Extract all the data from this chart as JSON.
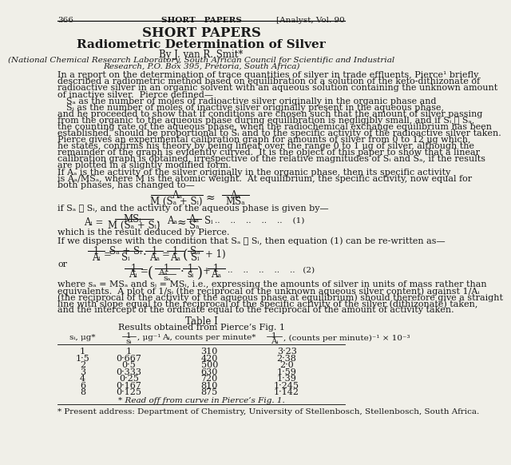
{
  "page_num": "366",
  "header_center": "SHORT   PAPERS",
  "header_right": "[Analyst, Vol. 90",
  "section_title": "SHORT PAPERS",
  "paper_title": "Radiometric Determination of Silver",
  "author": "By J. van R. Smit*",
  "affiliation_line1": "(National Chemical Research Laboratory, South African Council for Scientific and Industrial",
  "affiliation_line2": "Research, P.O. Box 395, Pretoria, South Africa)",
  "para1_lines": [
    "In a report on the determination of trace quantities of silver in trade effluents, Pierce¹ briefly",
    "described a radiometric method based on equilibration of a solution of the keto-dithizonate of",
    "radioactive silver in an organic solvent with an aqueous solution containing the unknown amount",
    "of inactive silver.  Pierce defined—"
  ],
  "indent1": "Sₐ as the number of moles of radioactive silver originally in the organic phase and",
  "indent2": "Sᵢ as the number of moles of inactive silver originally present in the aqueous phase,",
  "para2_lines": [
    "and he proceeded to show that if conditions are chosen such that the amount of silver passing",
    "from the organic to the aqueous phase during equilibration is negligibly small, and if Sᵢ ≪ Sₐ,",
    "the counting rate of the aqueous phase, when the radiochemical exchange equilibrium has been",
    "established, should be proportional to Sᵢ and to the specific activity of the radioactive silver taken."
  ],
  "para3_lines": [
    "Pierce gives an experimental calibration graph for amounts of silver from 0 to 12 μg which,",
    "he states, confirms his theory by being linear over the range 0 to 1 μg of silver, although the",
    "remainder of the graph is evidently curved.  It is the object of this paper to show that a linear",
    "calibration graph is obtained, irrespective of the relative magnitudes of Sᵢ and Sₐ, if the results",
    "are plotted in a slightly modified form."
  ],
  "para4_lines": [
    "If Aₐ is the activity of the silver originally in the organic phase, then its specific activity",
    "is Aₐ/MSₐ, where M is the atomic weight.  At equilibrium, the specific activity, now equal for",
    "both phases, has changed to—"
  ],
  "eq_condition": "if Sₐ ≫ Sᵢ, and the activity of the aqueous phase is given by—",
  "eq1_note": "which is the result deduced by Pierce.",
  "para5": "If we dispense with the condition that Sₐ ≫ Sᵢ, then equation (1) can be re-written as—",
  "or_text": "or",
  "para6_lines": [
    "where sₐ = MSₐ and sᵢ = MSᵢ, i.e., expressing the amounts of silver in units of mass rather than",
    "equivalents.  A plot of 1/sᵢ (the reciprocal of the unknown aqueous silver content) against 1/Aᵢ",
    "(the reciprocal of the activity of the aqueous phase at equilibrium) should therefore give a straight",
    "line with slope equal to the reciprocal of the specific activity of the silver (dithizonate) taken,",
    "and the intercept of the ordinate equal to the reciprocal of the amount of activity taken."
  ],
  "table_title": "Table I",
  "table_subtitle": "Results obtained from Pierce’s Fig. 1",
  "table_data": [
    [
      "1",
      "1",
      "310",
      "3·23"
    ],
    [
      "1·5",
      "0·667",
      "420",
      "2·38"
    ],
    [
      "2",
      "0·5",
      "500",
      "2·0"
    ],
    [
      "3",
      "0·333",
      "630",
      "1·59"
    ],
    [
      "4",
      "0·25",
      "720",
      "1·39"
    ],
    [
      "6",
      "0·167",
      "810",
      "1·245"
    ],
    [
      "8",
      "0·125",
      "875",
      "1·142"
    ]
  ],
  "table_note": "* Read off from curve in Pierce’s Fig. 1.",
  "footnote": "* Present address: Department of Chemistry, University of Stellenbosch, Stellenbosch, South Africa.",
  "bg_color": "#f0efe8",
  "text_color": "#1a1a1a"
}
